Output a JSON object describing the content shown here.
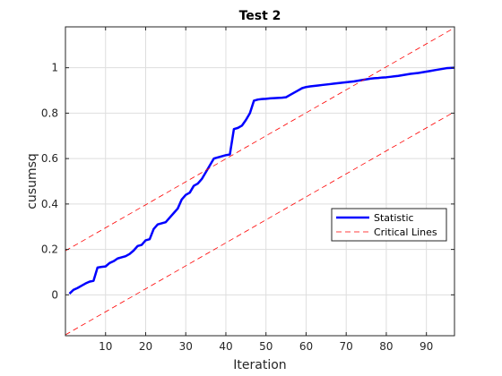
{
  "chart_data": {
    "type": "line",
    "title": "Test 2",
    "xlabel": "Iteration",
    "ylabel": "cusumsq",
    "xlim": [
      0,
      97
    ],
    "ylim": [
      -0.18,
      1.18
    ],
    "xticks": [
      10,
      20,
      30,
      40,
      50,
      60,
      70,
      80,
      90
    ],
    "yticks": [
      0,
      0.2,
      0.4,
      0.6,
      0.8,
      1
    ],
    "ytick_labels": [
      "0",
      "0.2",
      "0.4",
      "0.6",
      "0.8",
      "1"
    ],
    "grid": true,
    "legend_position": "right-middle",
    "series": [
      {
        "name": "Statistic",
        "color": "#0000ff",
        "style": "solid",
        "x": [
          1,
          2,
          3,
          4,
          5,
          6,
          7,
          8,
          9,
          10,
          11,
          12,
          13,
          14,
          15,
          16,
          17,
          18,
          19,
          20,
          21,
          22,
          23,
          24,
          25,
          26,
          27,
          28,
          29,
          30,
          31,
          32,
          33,
          34,
          35,
          36,
          37,
          38,
          39,
          40,
          41,
          42,
          43,
          44,
          45,
          46,
          47,
          48,
          49,
          50,
          51,
          52,
          53,
          54,
          55,
          56,
          57,
          58,
          59,
          60,
          61,
          62,
          63,
          64,
          65,
          66,
          67,
          68,
          69,
          70,
          71,
          72,
          73,
          74,
          75,
          76,
          77,
          78,
          79,
          80,
          81,
          82,
          83,
          84,
          85,
          86,
          87,
          88,
          89,
          90,
          91,
          92,
          93,
          94,
          95,
          96,
          97
        ],
        "y": [
          0.005,
          0.022,
          0.03,
          0.04,
          0.05,
          0.058,
          0.062,
          0.12,
          0.123,
          0.125,
          0.14,
          0.148,
          0.16,
          0.165,
          0.17,
          0.18,
          0.195,
          0.215,
          0.22,
          0.24,
          0.245,
          0.29,
          0.31,
          0.315,
          0.32,
          0.34,
          0.36,
          0.38,
          0.42,
          0.44,
          0.45,
          0.48,
          0.49,
          0.51,
          0.54,
          0.57,
          0.6,
          0.605,
          0.61,
          0.615,
          0.618,
          0.73,
          0.735,
          0.745,
          0.77,
          0.8,
          0.855,
          0.86,
          0.862,
          0.863,
          0.865,
          0.866,
          0.867,
          0.868,
          0.87,
          0.88,
          0.89,
          0.9,
          0.91,
          0.915,
          0.918,
          0.92,
          0.922,
          0.924,
          0.926,
          0.928,
          0.93,
          0.932,
          0.934,
          0.936,
          0.938,
          0.94,
          0.943,
          0.946,
          0.949,
          0.952,
          0.954,
          0.955,
          0.957,
          0.958,
          0.96,
          0.962,
          0.964,
          0.967,
          0.97,
          0.973,
          0.975,
          0.977,
          0.98,
          0.983,
          0.986,
          0.989,
          0.992,
          0.995,
          0.998,
          0.999,
          1.0
        ]
      },
      {
        "name": "Critical Lines",
        "color": "#ff0000",
        "style": "dashed",
        "x": [
          0,
          97
        ],
        "y": [
          0.194,
          1.176
        ]
      },
      {
        "name": "Critical Lines",
        "color": "#ff0000",
        "style": "dashed",
        "x": [
          0,
          97
        ],
        "y": [
          -0.176,
          0.806
        ]
      }
    ]
  }
}
